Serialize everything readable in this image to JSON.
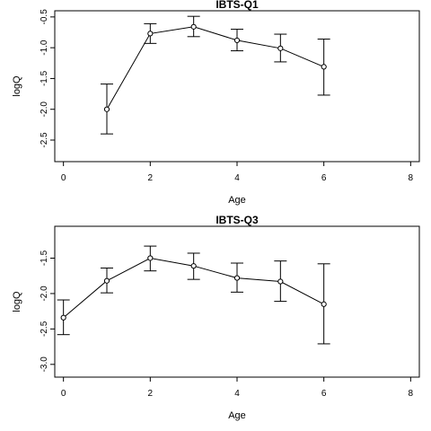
{
  "chart_data": [
    {
      "type": "line",
      "title": "IBTS-Q1",
      "xlabel": "Age",
      "ylabel": "logQ",
      "xlim": [
        -0.2,
        8.2
      ],
      "ylim": [
        -2.85,
        -0.4
      ],
      "xticks": [
        "0",
        "2",
        "4",
        "6",
        "8"
      ],
      "yticks": [
        "-0.5",
        "-1.0",
        "-1.5",
        "-2.0",
        "-2.5"
      ],
      "x": [
        1,
        2,
        3,
        4,
        5,
        6
      ],
      "y": [
        -2.0,
        -0.77,
        -0.66,
        -0.88,
        -1.01,
        -1.31
      ],
      "lower": [
        -2.4,
        -0.93,
        -0.82,
        -1.05,
        -1.23,
        -1.77
      ],
      "upper": [
        -1.59,
        -0.61,
        -0.49,
        -0.7,
        -0.78,
        -0.86
      ]
    },
    {
      "type": "line",
      "title": "IBTS-Q3",
      "xlabel": "Age",
      "ylabel": "logQ",
      "xlim": [
        -0.2,
        8.2
      ],
      "ylim": [
        -3.18,
        -1.05
      ],
      "xticks": [
        "0",
        "2",
        "4",
        "6",
        "8"
      ],
      "yticks": [
        "-1.5",
        "-2.0",
        "-2.5",
        "-3.0"
      ],
      "x": [
        0,
        1,
        2,
        3,
        4,
        5,
        6
      ],
      "y": [
        -2.34,
        -1.82,
        -1.5,
        -1.61,
        -1.78,
        -1.83,
        -2.15
      ],
      "lower": [
        -2.58,
        -1.99,
        -1.68,
        -1.8,
        -1.98,
        -2.11,
        -2.71
      ],
      "upper": [
        -2.09,
        -1.64,
        -1.33,
        -1.43,
        -1.57,
        -1.54,
        -1.58
      ]
    }
  ]
}
